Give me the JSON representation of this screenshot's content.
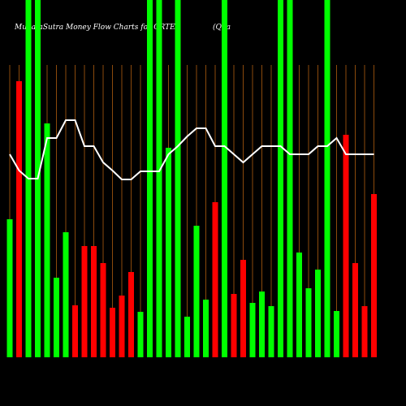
{
  "chart_data": {
    "type": "bar",
    "title": "MunafaSutra  Money Flow  Charts for QRTEA",
    "subtitle": "(Qua",
    "categories": [
      null,
      null,
      null,
      null,
      null,
      null,
      null,
      null,
      null,
      null,
      null,
      null,
      null,
      null,
      null,
      null,
      null,
      null,
      null,
      null,
      null,
      null,
      null,
      null,
      null,
      null,
      null,
      null,
      null,
      null,
      null,
      null,
      null,
      null,
      null,
      null,
      null,
      null,
      null,
      null
    ],
    "series": [
      {
        "type": "bar",
        "values": [
          170,
          340,
          440,
          440,
          288,
          98,
          154,
          64,
          137,
          137,
          116,
          61,
          76,
          105,
          56,
          440,
          440,
          258,
          440,
          50,
          162,
          71,
          191,
          440,
          78,
          120,
          67,
          81,
          63,
          440,
          440,
          129,
          85,
          108,
          440,
          57,
          274,
          116,
          63,
          201
        ],
        "colors": [
          "#00ff00",
          "#ff0000",
          "#00ff00",
          "#00ff00",
          "#00ff00",
          "#00ff00",
          "#00ff00",
          "#ff0000",
          "#ff0000",
          "#ff0000",
          "#ff0000",
          "#ff0000",
          "#ff0000",
          "#ff0000",
          "#00ff00",
          "#00ff00",
          "#00ff00",
          "#00ff00",
          "#00ff00",
          "#00ff00",
          "#00ff00",
          "#00ff00",
          "#ff0000",
          "#00ff00",
          "#ff0000",
          "#ff0000",
          "#00ff00",
          "#00ff00",
          "#00ff00",
          "#00ff00",
          "#00ff00",
          "#00ff00",
          "#00ff00",
          "#00ff00",
          "#00ff00",
          "#00ff00",
          "#ff0000",
          "#ff0000",
          "#ff0000",
          "#ff0000"
        ]
      },
      {
        "type": "line",
        "color": "#ffffff",
        "values": [
          250,
          230,
          220,
          220,
          270,
          270,
          292,
          292,
          260,
          260,
          240,
          230,
          219,
          219,
          229,
          229,
          229,
          250,
          260,
          272,
          282,
          282,
          260,
          260,
          250,
          240,
          250,
          260,
          260,
          260,
          250,
          250,
          250,
          260,
          260,
          270,
          250,
          250,
          250,
          250
        ]
      }
    ]
  }
}
